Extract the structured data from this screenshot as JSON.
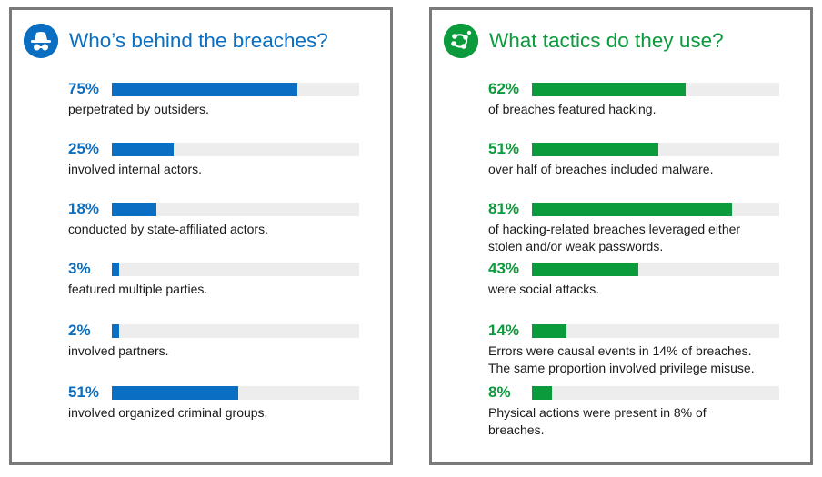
{
  "colors": {
    "blue": "#0a6fc2",
    "green": "#0b9a3c",
    "track": "#ededed",
    "border": "#7a7a7a"
  },
  "chart_data": [
    {
      "type": "bar",
      "title": "Who’s behind the breaches?",
      "icon": "spy-incognito-icon",
      "color": "#0a6fc2",
      "xlim": [
        0,
        100
      ],
      "items": [
        {
          "value": 75,
          "label": "75%",
          "description": [
            "perpetrated by outsiders."
          ]
        },
        {
          "value": 25,
          "label": "25%",
          "description": [
            "involved internal actors."
          ]
        },
        {
          "value": 18,
          "label": "18%",
          "description": [
            "conducted by state-affiliated actors."
          ]
        },
        {
          "value": 3,
          "label": "3%",
          "description": [
            "featured multiple parties."
          ]
        },
        {
          "value": 2,
          "label": "2%",
          "description": [
            "involved partners."
          ]
        },
        {
          "value": 51,
          "label": "51%",
          "description": [
            "involved organized criminal groups."
          ]
        }
      ]
    },
    {
      "type": "bar",
      "title": "What tactics do they use?",
      "icon": "network-nodes-icon",
      "color": "#0b9a3c",
      "xlim": [
        0,
        100
      ],
      "items": [
        {
          "value": 62,
          "label": "62%",
          "description": [
            "of breaches featured hacking."
          ]
        },
        {
          "value": 51,
          "label": "51%",
          "description": [
            "over half of breaches included malware."
          ]
        },
        {
          "value": 81,
          "label": "81%",
          "description": [
            "of hacking-related breaches leveraged either",
            "stolen and/or weak passwords."
          ]
        },
        {
          "value": 43,
          "label": "43%",
          "description": [
            "were social attacks."
          ]
        },
        {
          "value": 14,
          "label": "14%",
          "description": [
            "Errors were causal events in 14% of breaches.",
            "The same proportion involved privilege misuse."
          ]
        },
        {
          "value": 8,
          "label": "8%",
          "description": [
            "Physical actions were present in 8% of",
            "breaches."
          ]
        }
      ]
    }
  ]
}
